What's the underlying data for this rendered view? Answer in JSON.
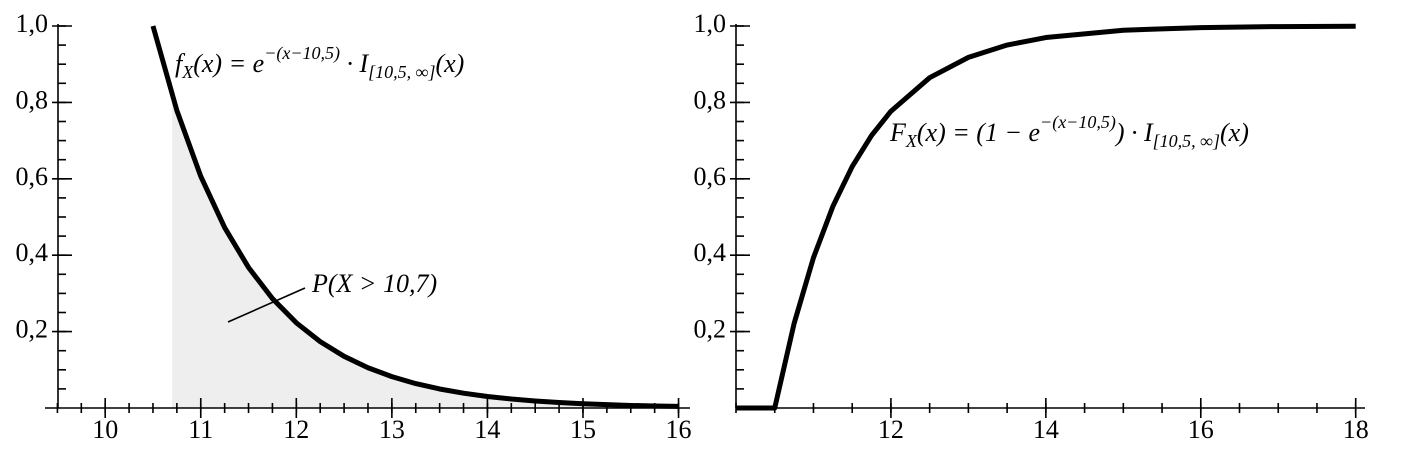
{
  "chart_data": [
    {
      "type": "line",
      "color": "#000000",
      "x": [
        10.5,
        10.75,
        11,
        11.25,
        11.5,
        11.75,
        12,
        12.25,
        12.5,
        12.75,
        13,
        13.25,
        13.5,
        13.75,
        14,
        14.25,
        14.5,
        14.75,
        15,
        15.25,
        15.5,
        15.75,
        16
      ],
      "values": [
        1,
        0.7788,
        0.6065,
        0.4724,
        0.3679,
        0.2865,
        0.2231,
        0.1738,
        0.1353,
        0.1054,
        0.0821,
        0.0639,
        0.0498,
        0.0388,
        0.0302,
        0.0235,
        0.0183,
        0.0143,
        0.0111,
        0.0087,
        0.0067,
        0.0052,
        0.0041
      ],
      "area": {
        "color": "#eeeeee",
        "x": [
          10.7,
          10.75,
          11,
          11.25,
          11.5,
          11.75,
          12,
          12.25,
          12.5,
          12.75,
          13,
          13.25,
          13.5,
          13.75,
          14,
          14.25,
          14.5,
          14.75,
          15,
          15.25,
          15.5,
          15.75,
          16
        ],
        "values": [
          0.8187,
          0.7788,
          0.6065,
          0.4724,
          0.3679,
          0.2865,
          0.2231,
          0.1738,
          0.1353,
          0.1054,
          0.0821,
          0.0639,
          0.0498,
          0.0388,
          0.0302,
          0.0235,
          0.0183,
          0.0143,
          0.0111,
          0.0087,
          0.0067,
          0.0052,
          0.0041
        ]
      },
      "xlim": [
        9.37,
        16.12
      ],
      "ylim": [
        0,
        1
      ],
      "xticks": [
        10,
        11,
        12,
        13,
        14,
        15,
        16
      ],
      "yticks": [
        {
          "value": 0.2,
          "label": "0,2"
        },
        {
          "value": 0.4,
          "label": "0,4"
        },
        {
          "value": 0.6,
          "label": "0,6"
        },
        {
          "value": 0.8,
          "label": "0,8"
        },
        {
          "value": 1,
          "label": "1,0"
        }
      ],
      "xminor": 0.25,
      "yminor": 0.05,
      "formula": [
        {
          "text": "f",
          "pos": "base"
        },
        {
          "text": "X",
          "pos": "sub"
        },
        {
          "text": "(x) = e",
          "pos": "base"
        },
        {
          "text": "−(x−10,5)",
          "pos": "sup"
        },
        {
          "text": " · I",
          "pos": "base"
        },
        {
          "text": "[10,5, ∞]",
          "pos": "sub"
        },
        {
          "text": "(x)",
          "pos": "base"
        }
      ],
      "annotation": "P(X > 10,7)"
    },
    {
      "type": "line",
      "color": "#000000",
      "x": [
        10,
        10.5,
        10.75,
        11,
        11.25,
        11.5,
        11.75,
        12,
        12.5,
        13,
        13.5,
        14,
        15,
        16,
        17,
        18
      ],
      "values": [
        0,
        0,
        0.2212,
        0.3935,
        0.5276,
        0.6321,
        0.7135,
        0.7769,
        0.8647,
        0.9179,
        0.9502,
        0.9698,
        0.9889,
        0.9959,
        0.9985,
        0.9994
      ],
      "xlim": [
        10,
        18.12
      ],
      "ylim": [
        0,
        1
      ],
      "xticks": [
        12,
        14,
        16,
        18
      ],
      "yticks": [
        {
          "value": 0.2,
          "label": "0,2"
        },
        {
          "value": 0.4,
          "label": "0,4"
        },
        {
          "value": 0.6,
          "label": "0,6"
        },
        {
          "value": 0.8,
          "label": "0,8"
        },
        {
          "value": 1,
          "label": "1,0"
        }
      ],
      "xminor": 0.5,
      "yminor": 0.05,
      "formula": [
        {
          "text": "F",
          "pos": "base"
        },
        {
          "text": "X",
          "pos": "sub"
        },
        {
          "text": "(x) = (1 − e",
          "pos": "base"
        },
        {
          "text": "−(x−10,5)",
          "pos": "sup"
        },
        {
          "text": ") · I",
          "pos": "base"
        },
        {
          "text": "[10,5, ∞]",
          "pos": "sub"
        },
        {
          "text": "(x)",
          "pos": "base"
        }
      ]
    }
  ]
}
